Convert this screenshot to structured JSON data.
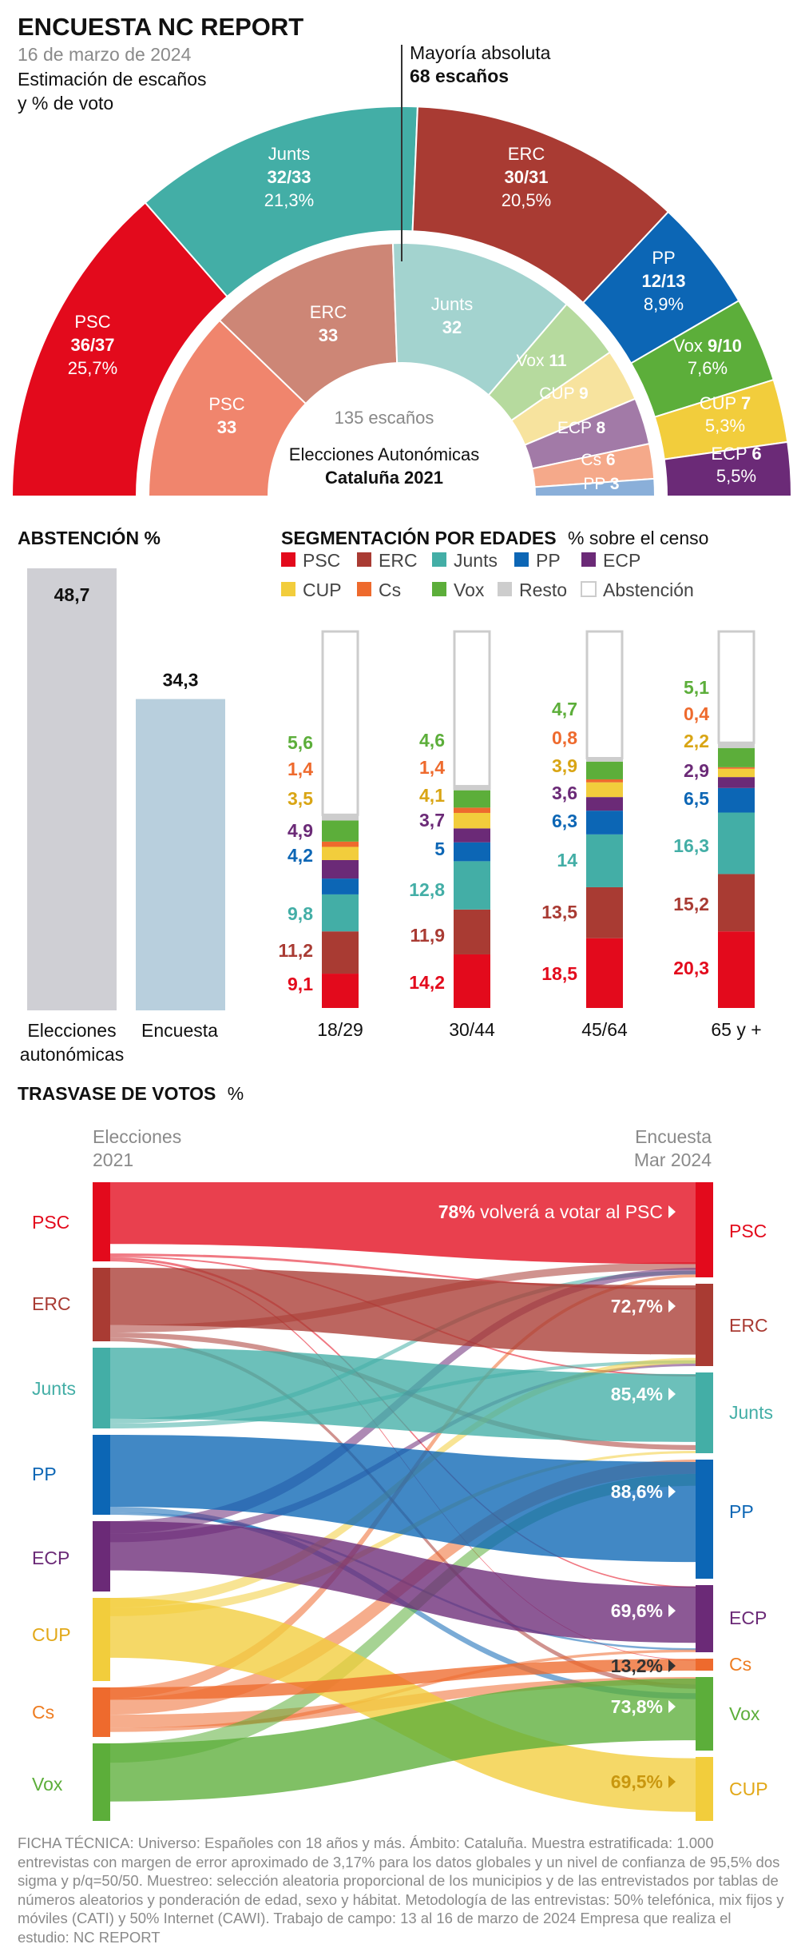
{
  "header": {
    "title": "ENCUESTA NC REPORT",
    "date": "16 de marzo de 2024",
    "subtitle_l1": "Estimación de escaños",
    "subtitle_l2": "y % de voto",
    "majority_label": "Mayoría absoluta",
    "majority_seats": "68 escaños"
  },
  "footnote": "FICHA TÉCNICA: Universo: Españoles con 18 años y más. Ámbito: Cataluña. Muestra estratificada: 1.000 entrevistas con margen de error aproximado de 3,17% para los datos globales y un nivel de confianza de 95,5% dos sigma y p/q=50/50. Muestreo: selección aleatoria proporcional de los municipios y de las entrevistados por tablas de números aleatorios y ponderación de edad, sexo y hábitat. Metodología de las entrevistas: 50% telefónica, mix fijos y móviles (CATI) y 50% Internet (CAWI). Trabajo de campo: 13 al 16 de marzo de 2024 Empresa que realiza el estudio: NC REPORT",
  "colors": {
    "PSC": "#e30a1c",
    "ERC": "#a93b33",
    "Junts": "#43aea6",
    "PP": "#0c66b5",
    "ECP": "#6b2a77",
    "CUP": "#f2cd3c",
    "Cs": "#ee6a2d",
    "Vox": "#5cae3a",
    "Resto": "#cdcdcd"
  },
  "chart_data": [
    {
      "type": "pie",
      "id": "poll_2024",
      "total_seats": 135,
      "slices": [
        {
          "party": "PSC",
          "seats_label": "36/37",
          "seats": 36.5,
          "pct": 25.7,
          "pct_label": "25,7%"
        },
        {
          "party": "Junts",
          "seats_label": "32/33",
          "seats": 32.5,
          "pct": 21.3,
          "pct_label": "21,3%"
        },
        {
          "party": "ERC",
          "seats_label": "30/31",
          "seats": 30.5,
          "pct": 20.5,
          "pct_label": "20,5%"
        },
        {
          "party": "PP",
          "seats_label": "12/13",
          "seats": 12.5,
          "pct": 8.9,
          "pct_label": "8,9%"
        },
        {
          "party": "Vox",
          "seats_label": "9/10",
          "seats": 9.5,
          "pct": 7.6,
          "pct_label": "7,6%"
        },
        {
          "party": "CUP",
          "seats_label": "7",
          "seats": 7,
          "pct": 5.3,
          "pct_label": "5,3%"
        },
        {
          "party": "ECP",
          "seats_label": "6",
          "seats": 6,
          "pct": 5.5,
          "pct_label": "5,5%"
        }
      ]
    },
    {
      "type": "pie",
      "id": "elections_2021",
      "center_l1": "135 escaños",
      "center_l2": "Elecciones Autonómicas",
      "center_l3": "Cataluña 2021",
      "slices": [
        {
          "party": "PSC",
          "seats": 33,
          "color": "#f0856d"
        },
        {
          "party": "ERC",
          "seats": 33,
          "color": "#cd8676"
        },
        {
          "party": "Junts",
          "seats": 32,
          "color": "#a3d3cf"
        },
        {
          "party": "Vox",
          "seats": 11,
          "color": "#b6da9e"
        },
        {
          "party": "CUP",
          "seats": 9,
          "color": "#f7e39e"
        },
        {
          "party": "ECP",
          "seats": 8,
          "color": "#a27aa7"
        },
        {
          "party": "Cs",
          "seats": 6,
          "color": "#f5a98a"
        },
        {
          "party": "PP",
          "seats": 3,
          "color": "#8aafd9"
        }
      ]
    },
    {
      "type": "bar",
      "id": "abstention",
      "title": "ABSTENCIÓN %",
      "categories": [
        "Elecciones autonómicas",
        "Encuesta"
      ],
      "label_l1": [
        "Elecciones",
        "Encuesta"
      ],
      "label_l2": [
        "autonómicas",
        ""
      ],
      "values": [
        48.7,
        34.3
      ],
      "value_labels": [
        "48,7",
        "34,3"
      ],
      "colors": [
        "#cfcfd4",
        "#b8cfdd"
      ]
    },
    {
      "type": "bar",
      "id": "age_segments",
      "title": "SEGMENTACIÓN POR EDADES",
      "title_suffix": "% sobre el censo",
      "legend": [
        "PSC",
        "ERC",
        "Junts",
        "PP",
        "ECP",
        "CUP",
        "Cs",
        "Vox",
        "Resto",
        "Abstención"
      ],
      "categories": [
        "18/29",
        "30/44",
        "45/64",
        "65 y +"
      ],
      "stack_order": [
        "PSC",
        "ERC",
        "Junts",
        "PP",
        "ECP",
        "CUP",
        "Cs",
        "Vox",
        "Resto"
      ],
      "series": [
        {
          "name": "PSC",
          "values": [
            9.1,
            14.2,
            18.5,
            20.3
          ],
          "labels": [
            "9,1",
            "14,2",
            "18,5",
            "20,3"
          ]
        },
        {
          "name": "ERC",
          "values": [
            11.2,
            11.9,
            13.5,
            15.2
          ],
          "labels": [
            "11,2",
            "11,9",
            "13,5",
            "15,2"
          ]
        },
        {
          "name": "Junts",
          "values": [
            9.8,
            12.8,
            14,
            16.3
          ],
          "labels": [
            "9,8",
            "12,8",
            "14",
            "16,3"
          ]
        },
        {
          "name": "PP",
          "values": [
            4.2,
            5,
            6.3,
            6.5
          ],
          "labels": [
            "4,2",
            "5",
            "6,3",
            "6,5"
          ]
        },
        {
          "name": "ECP",
          "values": [
            4.9,
            3.7,
            3.6,
            2.9
          ],
          "labels": [
            "4,9",
            "3,7",
            "3,6",
            "2,9"
          ]
        },
        {
          "name": "CUP",
          "values": [
            3.5,
            4.1,
            3.9,
            2.2
          ],
          "labels": [
            "3,5",
            "4,1",
            "3,9",
            "2,2"
          ]
        },
        {
          "name": "Cs",
          "values": [
            1.4,
            1.4,
            0.8,
            0.4
          ],
          "labels": [
            "1,4",
            "1,4",
            "0,8",
            "0,4"
          ]
        },
        {
          "name": "Vox",
          "values": [
            5.6,
            4.6,
            4.7,
            5.1
          ],
          "labels": [
            "5,6",
            "4,6",
            "4,7",
            "5,1"
          ]
        },
        {
          "name": "Resto",
          "values": [
            1.5,
            1.4,
            1.2,
            1.4
          ]
        }
      ],
      "abstention": [
        48.8,
        41.9,
        33.8,
        29.7
      ]
    },
    {
      "type": "sankey",
      "id": "vote_transfer",
      "title": "TRASVASE DE VOTOS",
      "title_suffix": "%",
      "left_header_l1": "Elecciones",
      "left_header_l2": "2021",
      "right_header_l1": "Encuesta",
      "right_header_l2": "Mar 2024",
      "left_nodes": [
        "PSC",
        "ERC",
        "Junts",
        "PP",
        "ECP",
        "CUP",
        "Cs",
        "Vox"
      ],
      "right_nodes": [
        "PSC",
        "ERC",
        "Junts",
        "PP",
        "ECP",
        "Cs",
        "Vox",
        "CUP"
      ],
      "retention": [
        {
          "party": "PSC",
          "pct_label": "78%",
          "suffix": " volverá a votar al PSC"
        },
        {
          "party": "ERC",
          "pct_label": "72,7%",
          "suffix": ""
        },
        {
          "party": "Junts",
          "pct_label": "85,4%",
          "suffix": ""
        },
        {
          "party": "PP",
          "pct_label": "88,6%",
          "suffix": ""
        },
        {
          "party": "ECP",
          "pct_label": "69,6%",
          "suffix": ""
        },
        {
          "party": "Cs",
          "pct_label": "13,2%",
          "suffix": ""
        },
        {
          "party": "Vox",
          "pct_label": "73,8%",
          "suffix": ""
        },
        {
          "party": "CUP",
          "pct_label": "69,5%",
          "suffix": ""
        }
      ]
    }
  ]
}
